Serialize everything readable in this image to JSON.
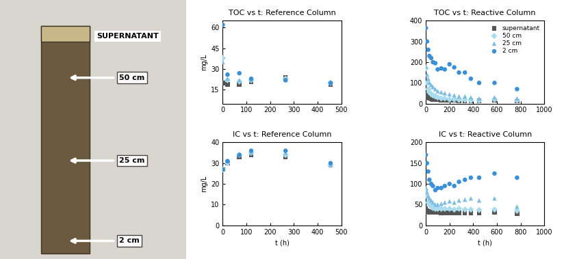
{
  "photo": {
    "labels": [
      "SUPERNATANT",
      "50 cm",
      "25 cm",
      "2 cm"
    ]
  },
  "chart_data": [
    {
      "type": "scatter",
      "title": "TOC vs t: Reference Column",
      "y_label": "mg/L",
      "x": [
        0,
        20,
        70,
        120,
        265,
        455
      ],
      "xlim": [
        0,
        500
      ],
      "xticks": [
        0,
        100,
        200,
        300,
        400,
        500
      ],
      "ylim": [
        5,
        65
      ],
      "yticks": [
        15,
        30,
        45,
        60
      ],
      "series": [
        {
          "name": "supernatant",
          "color": "#555555",
          "marker": "square",
          "values": [
            20,
            19,
            19,
            21,
            24,
            19
          ]
        },
        {
          "name": "50 cm",
          "color": "#a9dcec",
          "marker": "diamond",
          "values": [
            38,
            22,
            21,
            22,
            23,
            20
          ]
        },
        {
          "name": "25 cm",
          "color": "#7fbde3",
          "marker": "triangle",
          "values": [
            35,
            23,
            22,
            22,
            22,
            20
          ]
        },
        {
          "name": "2 cm",
          "color": "#3a8fd6",
          "marker": "circle",
          "values": [
            62,
            26,
            27,
            23,
            22,
            20
          ]
        }
      ]
    },
    {
      "type": "scatter",
      "title": "TOC vs t: Reactive Column",
      "legend": "upper right",
      "x": [
        0,
        10,
        20,
        30,
        45,
        60,
        80,
        100,
        130,
        160,
        200,
        240,
        280,
        330,
        380,
        450,
        580,
        770
      ],
      "xlim": [
        0,
        1000
      ],
      "xticks": [
        0,
        200,
        400,
        600,
        800,
        1000
      ],
      "ylim": [
        0,
        400
      ],
      "yticks": [
        0,
        100,
        200,
        300,
        400
      ],
      "series": [
        {
          "name": "supernatant",
          "color": "#555555",
          "marker": "square",
          "values": [
            45,
            35,
            30,
            25,
            22,
            20,
            18,
            18,
            16,
            15,
            15,
            15,
            14,
            14,
            14,
            13,
            15,
            12
          ]
        },
        {
          "name": "50 cm",
          "color": "#a9dcec",
          "marker": "diamond",
          "values": [
            170,
            100,
            70,
            55,
            45,
            40,
            35,
            30,
            25,
            25,
            20,
            20,
            18,
            18,
            15,
            15,
            20,
            15
          ]
        },
        {
          "name": "25 cm",
          "color": "#7fbde3",
          "marker": "triangle",
          "values": [
            180,
            140,
            120,
            100,
            90,
            80,
            70,
            60,
            55,
            50,
            45,
            40,
            35,
            35,
            30,
            25,
            30,
            25
          ]
        },
        {
          "name": "2 cm",
          "color": "#3a8fd6",
          "marker": "circle",
          "values": [
            365,
            300,
            260,
            230,
            220,
            200,
            195,
            165,
            170,
            165,
            190,
            175,
            150,
            150,
            120,
            100,
            100,
            70
          ]
        }
      ]
    },
    {
      "type": "scatter",
      "title": "IC vs t: Reference Column",
      "y_label": "mg/L",
      "x_label": "t (h)",
      "x": [
        0,
        20,
        70,
        120,
        265,
        455
      ],
      "xlim": [
        0,
        500
      ],
      "xticks": [
        0,
        100,
        200,
        300,
        400,
        500
      ],
      "ylim": [
        0,
        40
      ],
      "yticks": [
        0,
        10,
        20,
        30,
        40
      ],
      "series": [
        {
          "name": "supernatant",
          "color": "#555555",
          "marker": "square",
          "values": [
            27,
            30,
            33,
            34,
            33,
            29
          ]
        },
        {
          "name": "50 cm",
          "color": "#a9dcec",
          "marker": "diamond",
          "values": [
            27,
            30,
            34,
            35,
            34,
            29
          ]
        },
        {
          "name": "25 cm",
          "color": "#7fbde3",
          "marker": "triangle",
          "values": [
            27,
            31,
            34,
            35,
            35,
            29
          ]
        },
        {
          "name": "2 cm",
          "color": "#3a8fd6",
          "marker": "circle",
          "values": [
            27,
            31,
            34,
            36,
            36,
            30
          ]
        }
      ]
    },
    {
      "type": "scatter",
      "title": "IC vs t: Reactive Column",
      "x_label": "t (h)",
      "x": [
        0,
        10,
        20,
        30,
        45,
        60,
        80,
        100,
        130,
        160,
        200,
        240,
        280,
        330,
        380,
        450,
        580,
        770
      ],
      "xlim": [
        0,
        1000
      ],
      "xticks": [
        0,
        200,
        400,
        600,
        800,
        1000
      ],
      "ylim": [
        0,
        200
      ],
      "yticks": [
        0,
        50,
        100,
        150,
        200
      ],
      "series": [
        {
          "name": "supernatant",
          "color": "#555555",
          "marker": "square",
          "values": [
            40,
            35,
            33,
            32,
            32,
            31,
            31,
            31,
            30,
            30,
            30,
            30,
            30,
            30,
            30,
            30,
            32,
            28
          ]
        },
        {
          "name": "50 cm",
          "color": "#a9dcec",
          "marker": "diamond",
          "values": [
            85,
            70,
            55,
            50,
            45,
            42,
            40,
            40,
            40,
            40,
            40,
            38,
            40,
            38,
            38,
            37,
            38,
            35
          ]
        },
        {
          "name": "25 cm",
          "color": "#7fbde3",
          "marker": "triangle",
          "values": [
            90,
            80,
            70,
            65,
            60,
            55,
            50,
            50,
            52,
            55,
            58,
            55,
            60,
            62,
            65,
            60,
            65,
            45
          ]
        },
        {
          "name": "2 cm",
          "color": "#3a8fd6",
          "marker": "circle",
          "values": [
            170,
            150,
            130,
            110,
            100,
            95,
            85,
            90,
            90,
            95,
            100,
            95,
            105,
            110,
            115,
            115,
            125,
            115
          ]
        }
      ]
    }
  ]
}
